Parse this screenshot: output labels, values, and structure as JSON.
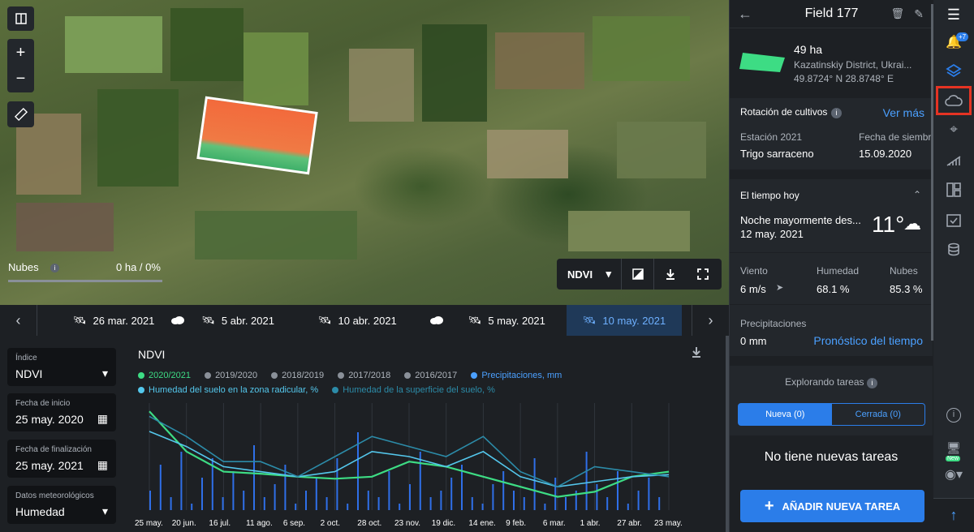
{
  "map": {
    "clouds_label": "Nubes",
    "clouds_info": "i",
    "clouds_value": "0 ha / 0%",
    "index_select": "NDVI"
  },
  "timeline": {
    "dates": [
      "26 mar. 2021",
      "5 abr. 2021",
      "10 abr. 2021",
      "5 may. 2021",
      "10 may. 2021"
    ],
    "active": "10 may. 2021"
  },
  "filters": {
    "index": {
      "label": "Índice",
      "value": "NDVI"
    },
    "start": {
      "label": "Fecha de inicio",
      "value": "25 may. 2020"
    },
    "end": {
      "label": "Fecha de finalización",
      "value": "25 may. 2021"
    },
    "meteo": {
      "label": "Datos meteorológicos",
      "value": "Humedad"
    }
  },
  "chart": {
    "title": "NDVI",
    "legend": [
      "2020/2021",
      "2019/2020",
      "2018/2019",
      "2017/2018",
      "2016/2017",
      "Precipitaciones, mm",
      "Humedad del suelo en la zona radicular, %",
      "Humedad de la superficie del suelo, %"
    ],
    "xticks": [
      "25 may.",
      "20 jun.",
      "16 jul.",
      "11 ago.",
      "6 sep.",
      "2 oct.",
      "28 oct.",
      "23 nov.",
      "19 dic.",
      "14 ene.",
      "9 feb.",
      "6 mar.",
      "1 abr.",
      "27 abr.",
      "23 may."
    ]
  },
  "chart_data": {
    "type": "line",
    "title": "NDVI",
    "x": [
      "25 may.",
      "20 jun.",
      "16 jul.",
      "11 ago.",
      "6 sep.",
      "2 oct.",
      "28 oct.",
      "23 nov.",
      "19 dic.",
      "14 ene.",
      "9 feb.",
      "6 mar.",
      "1 abr.",
      "27 abr.",
      "23 may."
    ],
    "series": [
      {
        "name": "2020/2021",
        "values": [
          0.95,
          0.55,
          0.35,
          0.33,
          0.3,
          0.28,
          0.3,
          0.45,
          0.4,
          0.3,
          0.2,
          0.1,
          0.15,
          0.3,
          0.35
        ]
      },
      {
        "name": "Humedad del suelo en la zona radicular, %",
        "values": [
          0.75,
          0.6,
          0.4,
          0.35,
          0.3,
          0.35,
          0.55,
          0.5,
          0.4,
          0.55,
          0.3,
          0.2,
          0.25,
          0.3,
          0.32
        ]
      },
      {
        "name": "Humedad de la superficie del suelo, %",
        "values": [
          0.9,
          0.7,
          0.45,
          0.45,
          0.3,
          0.5,
          0.7,
          0.6,
          0.5,
          0.7,
          0.35,
          0.2,
          0.4,
          0.35,
          0.3
        ]
      }
    ]
  },
  "field": {
    "name": "Field 177",
    "area": "49 ha",
    "district": "Kazatinskiy District, Ukrai...",
    "coords": "49.8724° N 28.8748° E"
  },
  "rotation": {
    "title": "Rotación de cultivos",
    "info": "i",
    "more": "Ver más",
    "season_label": "Estación 2021",
    "sow_label": "Fecha de siembra",
    "crop": "Trigo sarraceno",
    "sow_date": "15.09.2020"
  },
  "weather": {
    "title": "El tiempo hoy",
    "desc": "Noche mayormente des...",
    "date": "12 may. 2021",
    "temp": "11°",
    "wind_label": "Viento",
    "wind": "6 m/s",
    "hum_label": "Humedad",
    "hum": "68.1 %",
    "cloud_label": "Nubes",
    "cloud": "85.3 %",
    "precip_label": "Precipitaciones",
    "precip": "0 mm",
    "forecast": "Pronóstico del tiempo"
  },
  "tasks": {
    "title": "Explorando tareas",
    "info": "i",
    "tab_new": "Nueva (0)",
    "tab_closed": "Cerrada (0)",
    "empty": "No tiene nuevas tareas",
    "add": "AÑADIR NUEVA TAREA"
  },
  "iconbar": {
    "notif_badge": "+7",
    "new_badge": "New"
  },
  "colors": {
    "accent": "#2b7de9",
    "ndvi_2021": "#3ddc84",
    "humidity": "#54c7ec",
    "precip": "#2f6fe8"
  }
}
